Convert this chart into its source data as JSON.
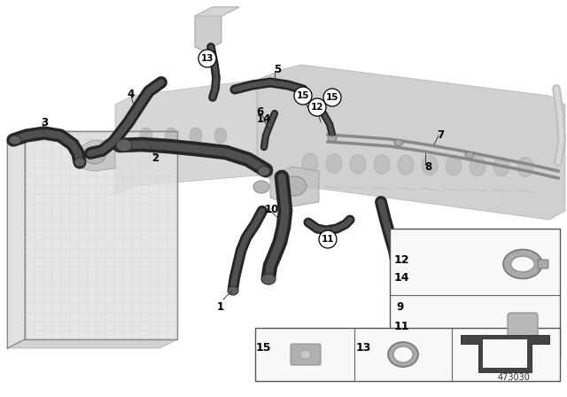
{
  "background_color": "#ffffff",
  "part_number": "473030",
  "fig_width": 6.4,
  "fig_height": 4.48,
  "dpi": 100,
  "engine_color": "#d0d0d0",
  "hose_dark": "#2a2a2a",
  "hose_mid": "#505050",
  "hose_light": "#707070",
  "pipe_color": "#888888",
  "border_color": "#333333",
  "legend_bg": "#f8f8f8",
  "radiator_color": "#d8d8d8",
  "reservoir_color": "#c8c8c8"
}
